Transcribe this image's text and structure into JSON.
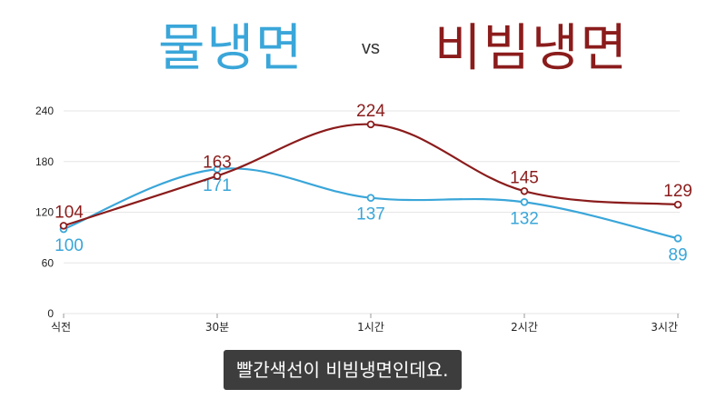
{
  "header": {
    "title_left": "물냉면",
    "vs": "vs",
    "title_right": "비빔냉면"
  },
  "caption": "빨간색선이 비빔냉면인데요.",
  "colors": {
    "mul": "#3aa6d9",
    "bibim": "#8b1c1c",
    "grid": "#e6e6e6"
  },
  "chart_data": {
    "type": "line",
    "categories": [
      "식전",
      "30분",
      "1시간",
      "2시간",
      "3시간"
    ],
    "yticks": [
      0,
      60,
      120,
      180,
      240
    ],
    "ylim": [
      0,
      240
    ],
    "grid": true,
    "series": [
      {
        "name": "물냉면",
        "color": "#3aa6d9",
        "values": [
          100,
          171,
          137,
          132,
          89
        ],
        "label_position": "below"
      },
      {
        "name": "비빔냉면",
        "color": "#8b1c1c",
        "values": [
          104,
          163,
          224,
          145,
          129
        ],
        "label_position": "above"
      }
    ]
  }
}
